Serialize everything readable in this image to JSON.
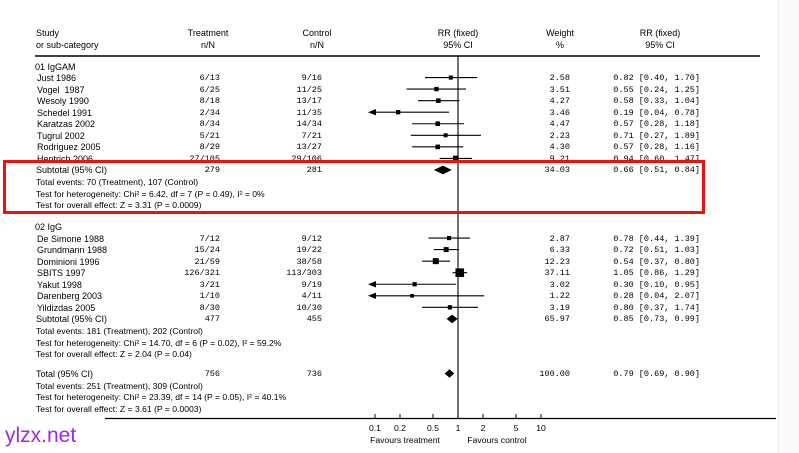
{
  "columns": {
    "study": [
      "Study",
      "or sub-category"
    ],
    "treatment": [
      "Treatment",
      "n/N"
    ],
    "control": [
      "Control",
      "n/N"
    ],
    "plot": [
      "RR (fixed)",
      "95% CI"
    ],
    "weight": [
      "Weight",
      "%"
    ],
    "rr": [
      "RR (fixed)",
      "95% CI"
    ]
  },
  "watermark": "ylzx.net",
  "colors": {
    "highlight": "#ee1009",
    "watermark": "#a428dc",
    "ink": "#000000",
    "background": "#ffffff"
  },
  "chart_data": {
    "type": "forest",
    "effect_measure": "RR (fixed), 95% CI",
    "scale": {
      "log": true,
      "min": 0.1,
      "max": 10,
      "ticks": [
        0.1,
        0.2,
        0.5,
        1,
        2,
        5,
        10
      ],
      "favours_left": "Favours treatment",
      "favours_right": "Favours control"
    },
    "groups": [
      {
        "label": "01 IgGAM",
        "studies": [
          {
            "name": "Just 1986",
            "treatment": "6/13",
            "control": "9/16",
            "weight": 2.58,
            "weight_text": "2.58",
            "rr": 0.82,
            "ci_low": 0.4,
            "ci_high": 1.7,
            "rr_text": "0.82 [0.40, 1.70]"
          },
          {
            "name": "Vogel  1987",
            "treatment": "6/25",
            "control": "11/25",
            "weight": 3.51,
            "weight_text": "3.51",
            "rr": 0.55,
            "ci_low": 0.24,
            "ci_high": 1.25,
            "rr_text": "0.55 [0.24, 1.25]"
          },
          {
            "name": "Wesoly 1990",
            "treatment": "8/18",
            "control": "13/17",
            "weight": 4.27,
            "weight_text": "4.27",
            "rr": 0.58,
            "ci_low": 0.33,
            "ci_high": 1.04,
            "rr_text": "0.58 [0.33, 1.04]"
          },
          {
            "name": "Schedel 1991",
            "treatment": "2/34",
            "control": "11/35",
            "weight": 3.46,
            "weight_text": "3.46",
            "rr": 0.19,
            "ci_low": 0.04,
            "ci_high": 0.78,
            "rr_text": "0.19 [0.04, 0.78]"
          },
          {
            "name": "Karatzas 2002",
            "treatment": "8/34",
            "control": "14/34",
            "weight": 4.47,
            "weight_text": "4.47",
            "rr": 0.57,
            "ci_low": 0.28,
            "ci_high": 1.18,
            "rr_text": "0.57 [0.28, 1.18]"
          },
          {
            "name": "Tugrul 2002",
            "treatment": "5/21",
            "control": "7/21",
            "weight": 2.23,
            "weight_text": "2.23",
            "rr": 0.71,
            "ci_low": 0.27,
            "ci_high": 1.89,
            "rr_text": "0.71 [0.27, 1.89]"
          },
          {
            "name": "Rodriguez 2005",
            "treatment": "8/29",
            "control": "13/27",
            "weight": 4.3,
            "weight_text": "4.30",
            "rr": 0.57,
            "ci_low": 0.28,
            "ci_high": 1.16,
            "rr_text": "0.57 [0.28, 1.16]"
          },
          {
            "name": "Hentrich 2006",
            "treatment": "27/105",
            "control": "29/106",
            "weight": 9.21,
            "weight_text": "9.21",
            "rr": 0.94,
            "ci_low": 0.6,
            "ci_high": 1.47,
            "rr_text": "0.94 [0.60, 1.47]"
          }
        ],
        "subtotal": {
          "label": "Subtotal (95% CI)",
          "treatment": "279",
          "control": "281",
          "weight_text": "34.03",
          "rr": 0.66,
          "ci_low": 0.51,
          "ci_high": 0.84,
          "rr_text": "0.66 [0.51, 0.84]"
        },
        "stats": [
          "Total events: 70 (Treatment), 107 (Control)",
          "Test for heterogeneity: Chi² = 6.42, df = 7 (P = 0.49), I² = 0%",
          "Test for overall effect: Z = 3.31 (P = 0.0009)"
        ]
      },
      {
        "label": "02 IgG",
        "studies": [
          {
            "name": "De Simone 1988",
            "treatment": "7/12",
            "control": "9/12",
            "weight": 2.87,
            "weight_text": "2.87",
            "rr": 0.78,
            "ci_low": 0.44,
            "ci_high": 1.39,
            "rr_text": "0.78 [0.44, 1.39]"
          },
          {
            "name": "Grundmann 1988",
            "treatment": "15/24",
            "control": "19/22",
            "weight": 6.33,
            "weight_text": "6.33",
            "rr": 0.72,
            "ci_low": 0.51,
            "ci_high": 1.03,
            "rr_text": "0.72 [0.51, 1.03]"
          },
          {
            "name": "Dominioni 1996",
            "treatment": "21/59",
            "control": "38/58",
            "weight": 12.23,
            "weight_text": "12.23",
            "rr": 0.54,
            "ci_low": 0.37,
            "ci_high": 0.8,
            "rr_text": "0.54 [0.37, 0.80]"
          },
          {
            "name": "SBITS 1997",
            "treatment": "126/321",
            "control": "113/303",
            "weight": 37.11,
            "weight_text": "37.11",
            "rr": 1.05,
            "ci_low": 0.86,
            "ci_high": 1.29,
            "rr_text": "1.05 [0.86, 1.29]"
          },
          {
            "name": "Yakut 1998",
            "treatment": "3/21",
            "control": "9/19",
            "weight": 3.02,
            "weight_text": "3.02",
            "rr": 0.3,
            "ci_low": 0.1,
            "ci_high": 0.95,
            "rr_text": "0.30 [0.10, 0.95]"
          },
          {
            "name": "Darenberg 2003",
            "treatment": "1/10",
            "control": "4/11",
            "weight": 1.22,
            "weight_text": "1.22",
            "rr": 0.28,
            "ci_low": 0.04,
            "ci_high": 2.07,
            "rr_text": "0.28 [0.04, 2.07]"
          },
          {
            "name": "Yildizdas 2005",
            "treatment": "8/30",
            "control": "10/30",
            "weight": 3.19,
            "weight_text": "3.19",
            "rr": 0.8,
            "ci_low": 0.37,
            "ci_high": 1.74,
            "rr_text": "0.80 [0.37, 1.74]"
          }
        ],
        "subtotal": {
          "label": "Subtotal (95% CI)",
          "treatment": "477",
          "control": "455",
          "weight_text": "65.97",
          "rr": 0.85,
          "ci_low": 0.73,
          "ci_high": 0.99,
          "rr_text": "0.85 [0.73, 0.99]"
        },
        "stats": [
          "Total events: 181 (Treatment), 202 (Control)",
          "Test for heterogeneity: Chi² = 14.70, df = 6 (P = 0.02), I² = 59.2%",
          "Test for overall effect: Z = 2.04 (P = 0.04)"
        ]
      }
    ],
    "total": {
      "label": "Total (95% CI)",
      "treatment": "756",
      "control": "736",
      "weight_text": "100.00",
      "rr": 0.79,
      "ci_low": 0.69,
      "ci_high": 0.9,
      "rr_text": "0.79 [0.69, 0.90]",
      "stats": [
        "Total events: 251 (Treatment), 309 (Control)",
        "Test for heterogeneity: Chi² = 23.39, df = 14 (P = 0.05), I² = 40.1%",
        "Test for overall effect: Z = 3.61 (P = 0.0003)"
      ]
    }
  }
}
